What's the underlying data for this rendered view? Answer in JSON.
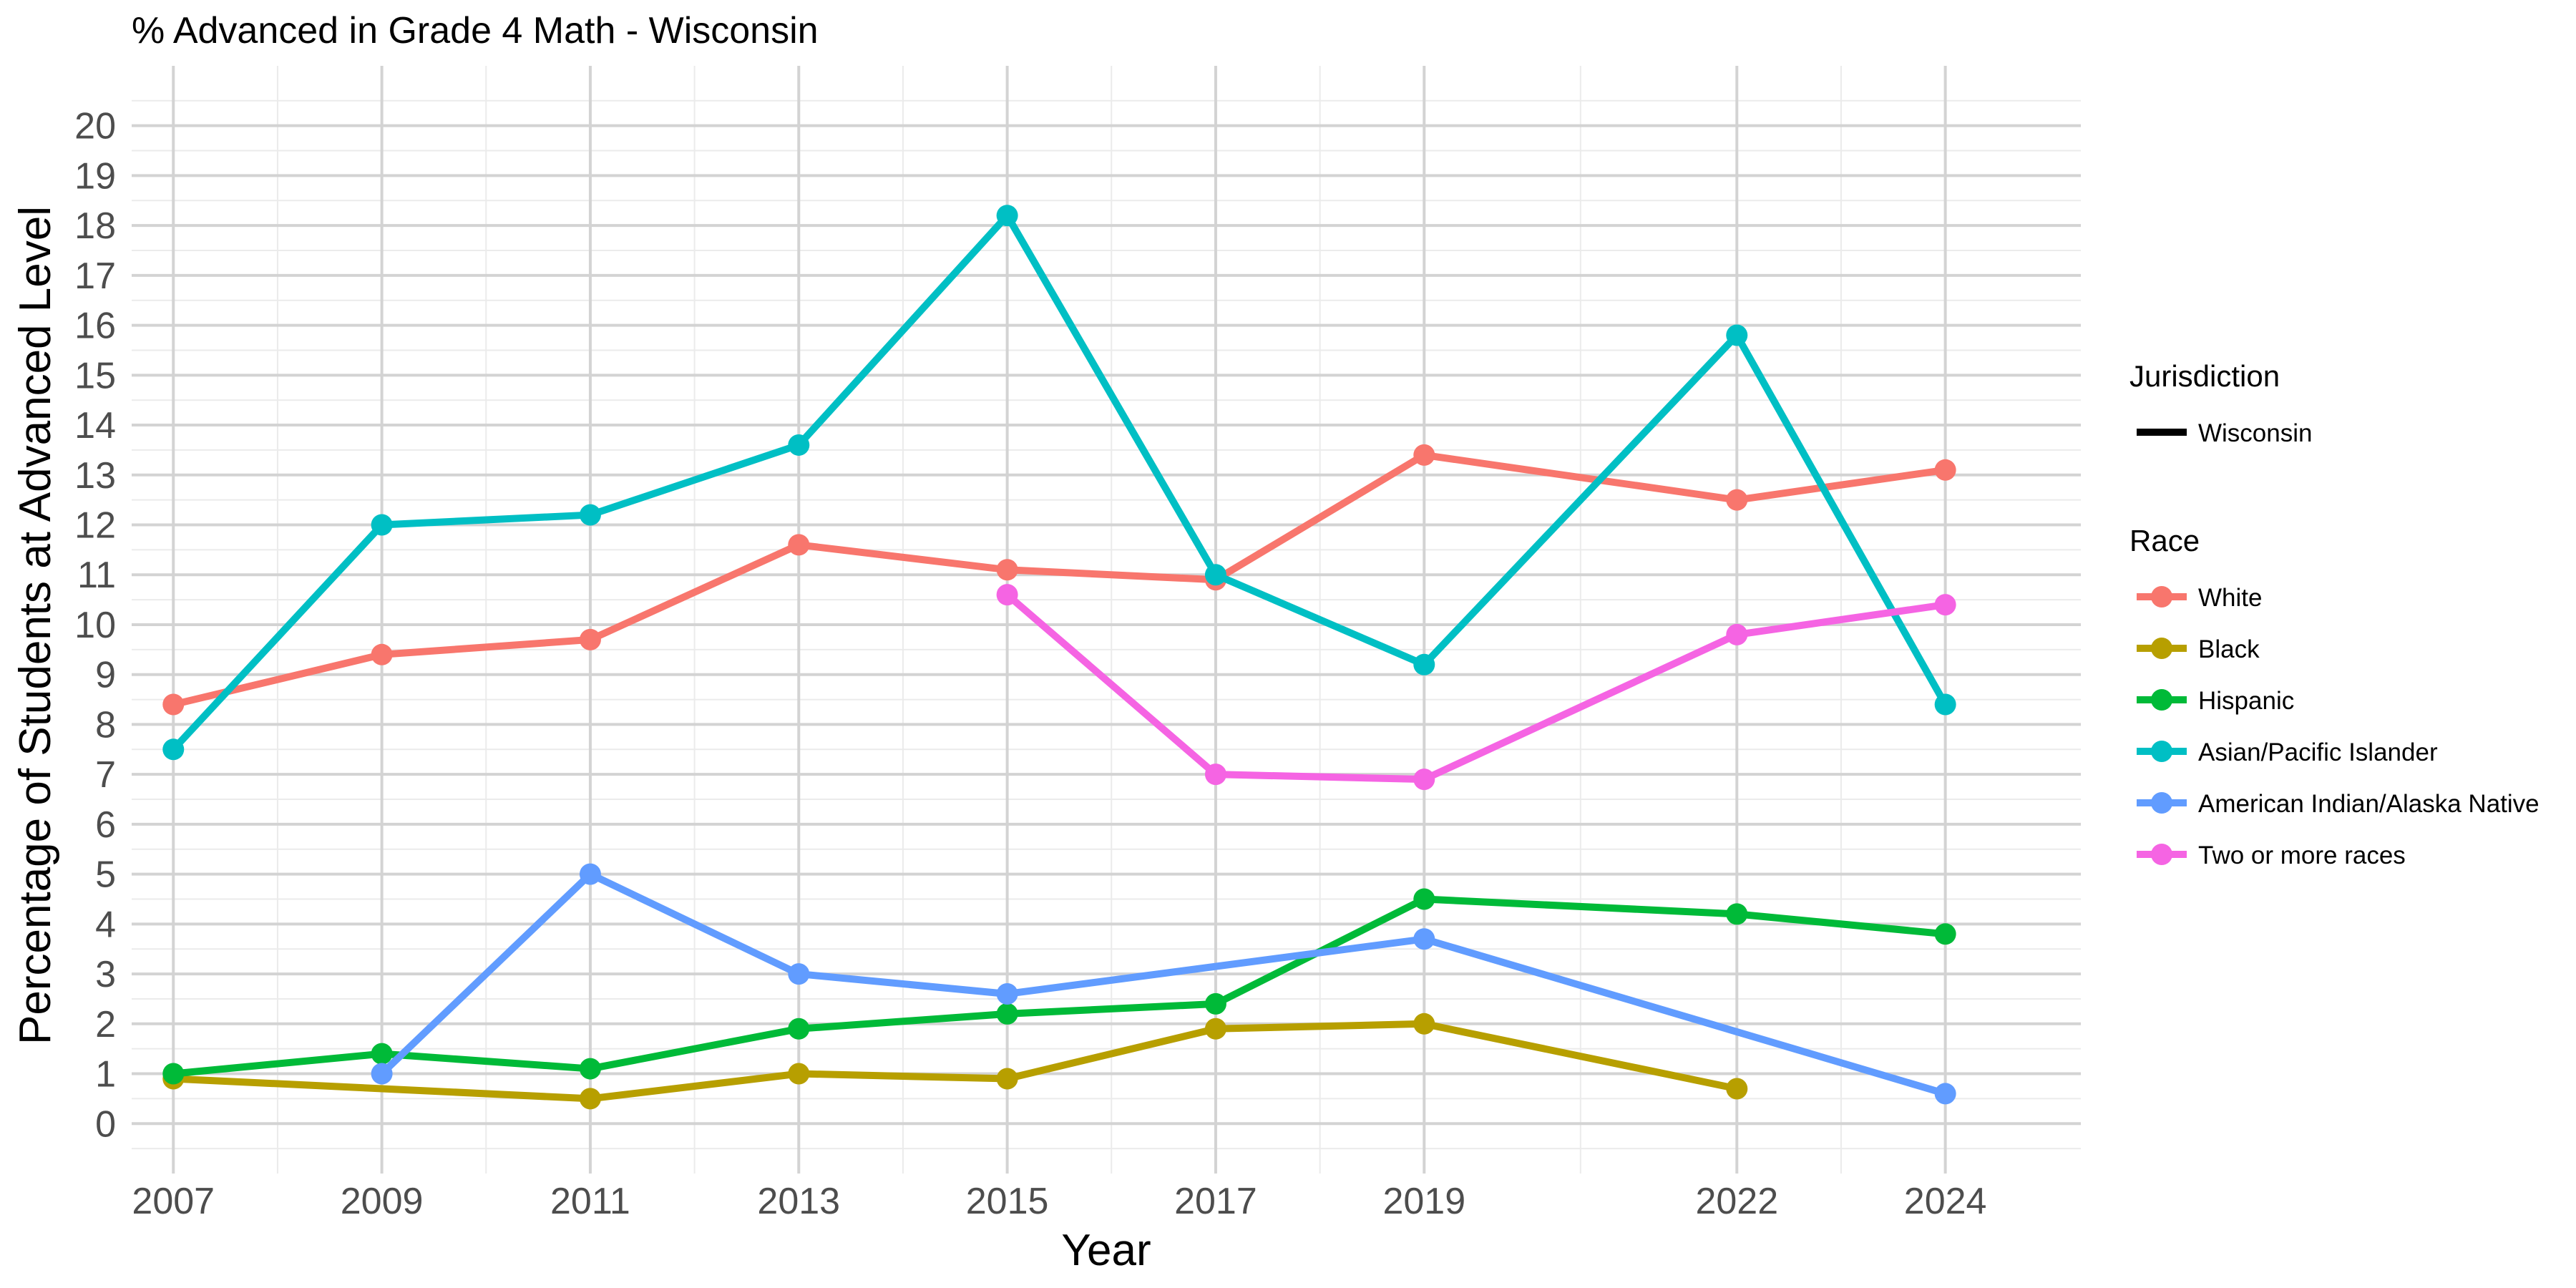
{
  "chart_data": {
    "type": "line",
    "title": "% Advanced in Grade 4 Math - Wisconsin",
    "xlabel": "Year",
    "ylabel": "Percentage of Students at Advanced Level",
    "xlim": [
      2006.6,
      2025.3
    ],
    "ylim": [
      -1,
      21.2
    ],
    "x_ticks": [
      "2007",
      "2009",
      "2011",
      "2013",
      "2015",
      "2017",
      "2019",
      "2022",
      "2024"
    ],
    "x_minor": [
      2008,
      2010,
      2012,
      2014,
      2016,
      2018,
      2020.5,
      2023
    ],
    "y_ticks": [
      "0",
      "1",
      "2",
      "3",
      "4",
      "5",
      "6",
      "7",
      "8",
      "9",
      "10",
      "11",
      "12",
      "13",
      "14",
      "15",
      "16",
      "17",
      "18",
      "19",
      "20"
    ],
    "grid": true,
    "legend_position": "right",
    "legend": {
      "jurisdiction_title": "Jurisdiction",
      "jurisdiction_label": "Wisconsin",
      "race_title": "Race"
    },
    "series": [
      {
        "name": "White",
        "color": "#F8766D",
        "x": [
          2007,
          2009,
          2011,
          2013,
          2015,
          2017,
          2019,
          2022,
          2024
        ],
        "y": [
          8.4,
          9.4,
          9.7,
          11.6,
          11.1,
          10.9,
          13.4,
          12.5,
          13.1
        ]
      },
      {
        "name": "Black",
        "color": "#B79F00",
        "x": [
          2007,
          2011,
          2013,
          2015,
          2017,
          2019,
          2022
        ],
        "y": [
          0.9,
          0.5,
          1.0,
          0.9,
          1.9,
          2.0,
          0.7
        ]
      },
      {
        "name": "Hispanic",
        "color": "#00BA38",
        "x": [
          2007,
          2009,
          2011,
          2013,
          2015,
          2017,
          2019,
          2022,
          2024
        ],
        "y": [
          1.0,
          1.4,
          1.1,
          1.9,
          2.2,
          2.4,
          4.5,
          4.2,
          3.8
        ]
      },
      {
        "name": "Asian/Pacific Islander",
        "color": "#00BFC4",
        "x": [
          2007,
          2009,
          2011,
          2013,
          2015,
          2017,
          2019,
          2022,
          2024
        ],
        "y": [
          7.5,
          12.0,
          12.2,
          13.6,
          18.2,
          11.0,
          9.2,
          15.8,
          8.4
        ]
      },
      {
        "name": "American Indian/Alaska Native",
        "color": "#619CFF",
        "x": [
          2009,
          2011,
          2013,
          2015,
          2019,
          2024
        ],
        "y": [
          1.0,
          5.0,
          3.0,
          2.6,
          3.7,
          0.6
        ]
      },
      {
        "name": "Two or more races",
        "color": "#F564E3",
        "x": [
          2015,
          2017,
          2019,
          2022,
          2024
        ],
        "y": [
          10.6,
          7.0,
          6.9,
          9.8,
          10.4
        ]
      }
    ]
  }
}
